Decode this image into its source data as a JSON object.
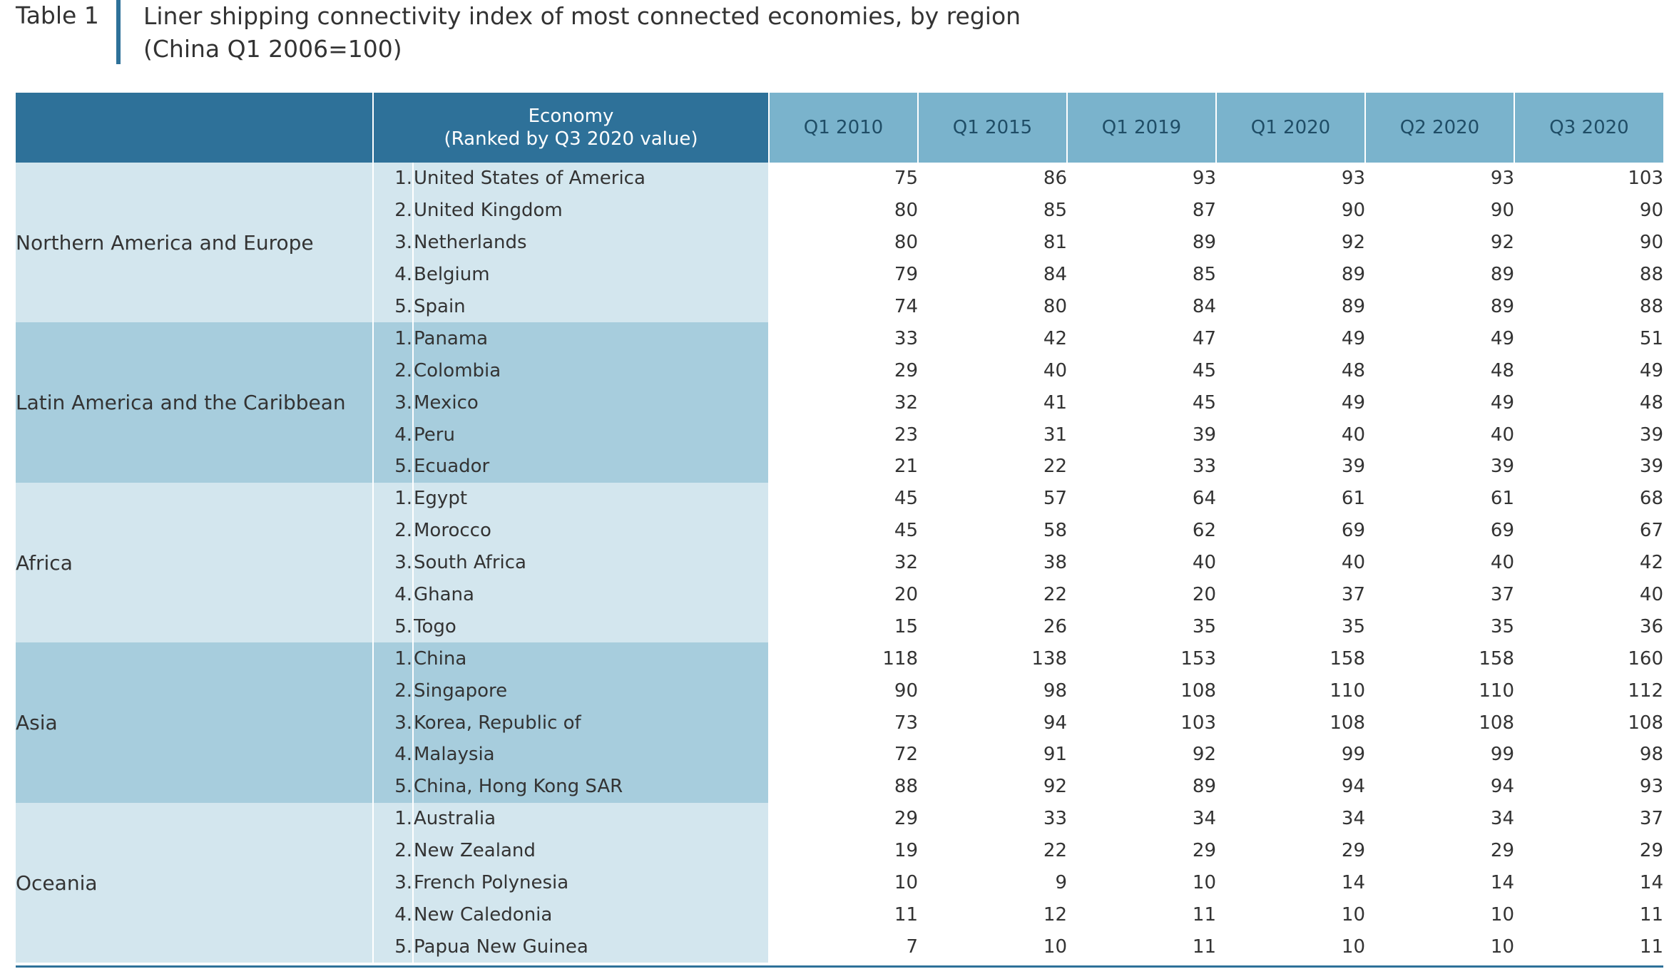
{
  "caption": {
    "label": "Table 1",
    "title_line1": "Liner shipping connectivity index of most connected economies, by region",
    "title_line2": "(China Q1 2006=100)"
  },
  "table": {
    "header": {
      "region": "",
      "economy_line1": "Economy",
      "economy_line2": "(Ranked by Q3 2020 value)",
      "periods": [
        "Q1 2010",
        "Q1 2015",
        "Q1 2019",
        "Q1 2020",
        "Q2 2020",
        "Q3 2020"
      ]
    },
    "regions": [
      {
        "name": "Northern America and Europe",
        "rows": [
          {
            "rank": "1.",
            "economy": "United States of America",
            "values": [
              "75",
              "86",
              "93",
              "93",
              "93",
              "103"
            ]
          },
          {
            "rank": "2.",
            "economy": "United Kingdom",
            "values": [
              "80",
              "85",
              "87",
              "90",
              "90",
              "90"
            ]
          },
          {
            "rank": "3.",
            "economy": "Netherlands",
            "values": [
              "80",
              "81",
              "89",
              "92",
              "92",
              "90"
            ]
          },
          {
            "rank": "4.",
            "economy": "Belgium",
            "values": [
              "79",
              "84",
              "85",
              "89",
              "89",
              "88"
            ]
          },
          {
            "rank": "5.",
            "economy": "Spain",
            "values": [
              "74",
              "80",
              "84",
              "89",
              "89",
              "88"
            ]
          }
        ]
      },
      {
        "name": "Latin America and the Caribbean",
        "rows": [
          {
            "rank": "1.",
            "economy": "Panama",
            "values": [
              "33",
              "42",
              "47",
              "49",
              "49",
              "51"
            ]
          },
          {
            "rank": "2.",
            "economy": "Colombia",
            "values": [
              "29",
              "40",
              "45",
              "48",
              "48",
              "49"
            ]
          },
          {
            "rank": "3.",
            "economy": "Mexico",
            "values": [
              "32",
              "41",
              "45",
              "49",
              "49",
              "48"
            ]
          },
          {
            "rank": "4.",
            "economy": "Peru",
            "values": [
              "23",
              "31",
              "39",
              "40",
              "40",
              "39"
            ]
          },
          {
            "rank": "5.",
            "economy": "Ecuador",
            "values": [
              "21",
              "22",
              "33",
              "39",
              "39",
              "39"
            ]
          }
        ]
      },
      {
        "name": "Africa",
        "rows": [
          {
            "rank": "1.",
            "economy": "Egypt",
            "values": [
              "45",
              "57",
              "64",
              "61",
              "61",
              "68"
            ]
          },
          {
            "rank": "2.",
            "economy": "Morocco",
            "values": [
              "45",
              "58",
              "62",
              "69",
              "69",
              "67"
            ]
          },
          {
            "rank": "3.",
            "economy": "South Africa",
            "values": [
              "32",
              "38",
              "40",
              "40",
              "40",
              "42"
            ]
          },
          {
            "rank": "4.",
            "economy": "Ghana",
            "values": [
              "20",
              "22",
              "20",
              "37",
              "37",
              "40"
            ]
          },
          {
            "rank": "5.",
            "economy": "Togo",
            "values": [
              "15",
              "26",
              "35",
              "35",
              "35",
              "36"
            ]
          }
        ]
      },
      {
        "name": "Asia",
        "rows": [
          {
            "rank": "1.",
            "economy": "China",
            "values": [
              "118",
              "138",
              "153",
              "158",
              "158",
              "160"
            ]
          },
          {
            "rank": "2.",
            "economy": "Singapore",
            "values": [
              "90",
              "98",
              "108",
              "110",
              "110",
              "112"
            ]
          },
          {
            "rank": "3.",
            "economy": "Korea, Republic of",
            "values": [
              "73",
              "94",
              "103",
              "108",
              "108",
              "108"
            ]
          },
          {
            "rank": "4.",
            "economy": "Malaysia",
            "values": [
              "72",
              "91",
              "92",
              "99",
              "99",
              "98"
            ]
          },
          {
            "rank": "5.",
            "economy": "China, Hong Kong SAR",
            "values": [
              "88",
              "92",
              "89",
              "94",
              "94",
              "93"
            ]
          }
        ]
      },
      {
        "name": "Oceania",
        "rows": [
          {
            "rank": "1.",
            "economy": "Australia",
            "values": [
              "29",
              "33",
              "34",
              "34",
              "34",
              "37"
            ]
          },
          {
            "rank": "2.",
            "economy": "New Zealand",
            "values": [
              "19",
              "22",
              "29",
              "29",
              "29",
              "29"
            ]
          },
          {
            "rank": "3.",
            "economy": "French Polynesia",
            "values": [
              "10",
              "9",
              "10",
              "14",
              "14",
              "14"
            ]
          },
          {
            "rank": "4.",
            "economy": "New Caledonia",
            "values": [
              "11",
              "12",
              "11",
              "10",
              "10",
              "11"
            ]
          },
          {
            "rank": "5.",
            "economy": "Papua New Guinea",
            "values": [
              "7",
              "10",
              "11",
              "10",
              "10",
              "11"
            ]
          }
        ]
      }
    ]
  }
}
